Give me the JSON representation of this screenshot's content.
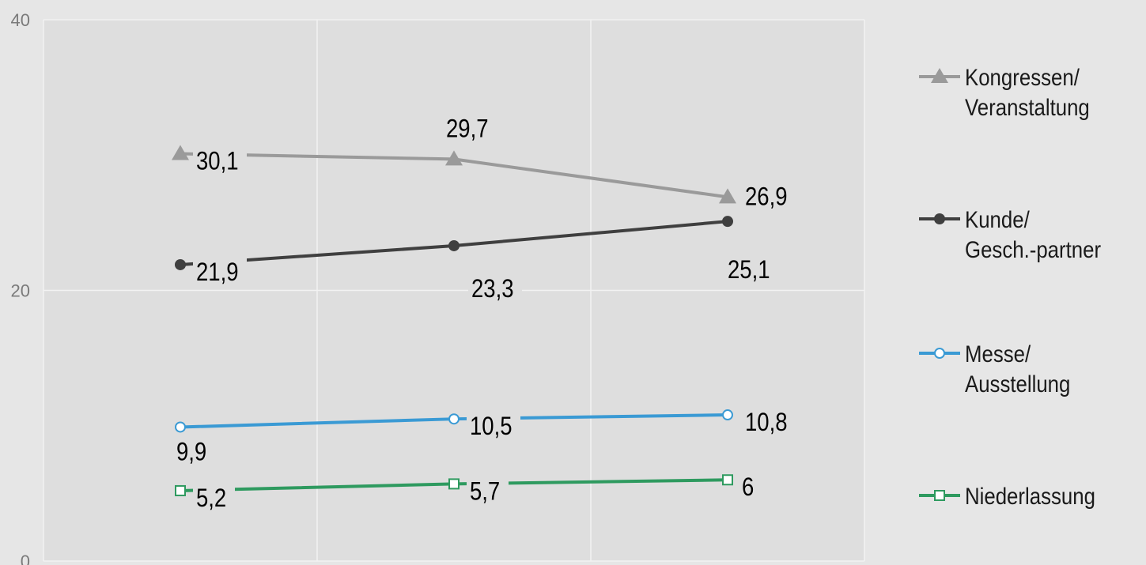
{
  "chart_data": {
    "type": "line",
    "categories": [
      "",
      "",
      ""
    ],
    "ylim": [
      0,
      40
    ],
    "y_ticks": [
      "0",
      "20",
      "40"
    ],
    "grid": true,
    "legend_position": "right",
    "colors": {
      "background": "#e6e6e6",
      "plot_background": "#dedede",
      "grid": "#f2f2f2"
    },
    "series": [
      {
        "name": "Kongressen/\nVeranstaltung",
        "marker": "triangle",
        "color": "#9a9a9a",
        "values": [
          30.1,
          29.7,
          26.9
        ],
        "labels": [
          "30,1",
          "29,7",
          "26,9"
        ]
      },
      {
        "name": "Kunde/\nGesch.-partner",
        "marker": "circle",
        "color": "#3f3f3f",
        "values": [
          21.9,
          23.3,
          25.1
        ],
        "labels": [
          "21,9",
          "23,3",
          "25,1"
        ]
      },
      {
        "name": "Messe/\nAusstellung",
        "marker": "hollow-circle",
        "color": "#3a9ad4",
        "values": [
          9.9,
          10.5,
          10.8
        ],
        "labels": [
          "9,9",
          "10,5",
          "10,8"
        ]
      },
      {
        "name": "Niederlassung",
        "marker": "hollow-square",
        "color": "#2e9a5f",
        "values": [
          5.2,
          5.7,
          6
        ],
        "labels": [
          "5,2",
          "5,7",
          "6"
        ]
      }
    ]
  }
}
